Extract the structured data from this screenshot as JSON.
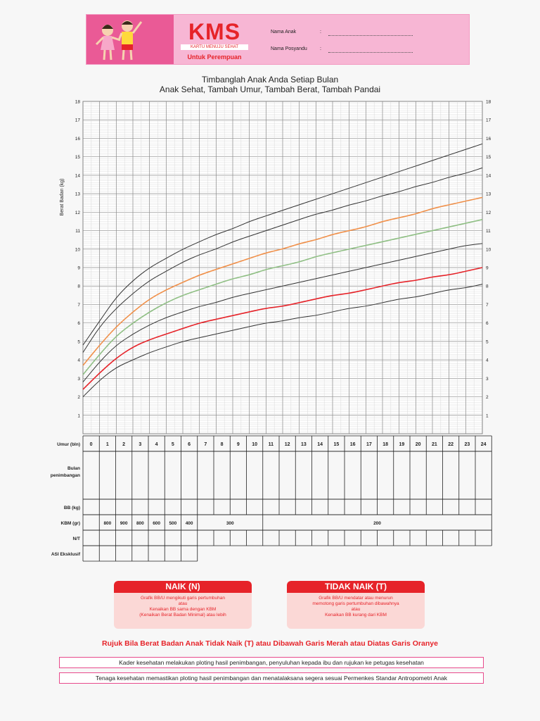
{
  "header": {
    "logo": "KMS",
    "logo_sub": "KARTU MENUJU SEHAT",
    "for_label": "Untuk Perempuan",
    "field_child": "Nama Anak",
    "field_posyandu": "Nama Posyandu",
    "colon": ":"
  },
  "titles": {
    "line1": "Timbanglah Anak Anda Setiap Bulan",
    "line2": "Anak Sehat, Tambah Umur, Tambah Berat, Tambah Pandai"
  },
  "chart_data": {
    "type": "line",
    "ylabel": "Berat Badan (kg)",
    "xlabel": "Umur (bln)",
    "xlim": [
      0,
      24
    ],
    "ylim": [
      0,
      18
    ],
    "y_ticks": [
      "1",
      "2",
      "3",
      "4",
      "5",
      "6",
      "7",
      "8",
      "9",
      "10",
      "11",
      "12",
      "13",
      "14",
      "15",
      "16",
      "17",
      "18"
    ],
    "x": [
      0,
      1,
      2,
      3,
      4,
      5,
      6,
      7,
      8,
      9,
      10,
      11,
      12,
      13,
      14,
      15,
      16,
      17,
      18,
      19,
      20,
      21,
      22,
      23,
      24
    ],
    "series": [
      {
        "color": "#333333",
        "values": [
          4.8,
          6.1,
          7.4,
          8.3,
          9.0,
          9.5,
          10.0,
          10.4,
          10.8,
          11.1,
          11.5,
          11.8,
          12.1,
          12.4,
          12.7,
          13.0,
          13.3,
          13.6,
          13.9,
          14.2,
          14.5,
          14.8,
          15.1,
          15.4,
          15.7
        ]
      },
      {
        "color": "#333333",
        "values": [
          4.4,
          5.8,
          6.8,
          7.6,
          8.3,
          8.8,
          9.3,
          9.7,
          10.0,
          10.4,
          10.7,
          11.0,
          11.3,
          11.6,
          11.9,
          12.1,
          12.4,
          12.6,
          12.9,
          13.1,
          13.4,
          13.6,
          13.9,
          14.1,
          14.4
        ]
      },
      {
        "color": "#f0904a",
        "values": [
          3.7,
          4.8,
          5.8,
          6.6,
          7.3,
          7.8,
          8.2,
          8.6,
          8.9,
          9.2,
          9.5,
          9.8,
          10.0,
          10.3,
          10.5,
          10.8,
          11.0,
          11.2,
          11.5,
          11.7,
          11.9,
          12.2,
          12.4,
          12.6,
          12.8
        ]
      },
      {
        "color": "#8fbf84",
        "values": [
          3.2,
          4.3,
          5.3,
          6.0,
          6.6,
          7.1,
          7.5,
          7.8,
          8.1,
          8.4,
          8.6,
          8.9,
          9.1,
          9.3,
          9.6,
          9.8,
          10.0,
          10.2,
          10.4,
          10.6,
          10.8,
          11.0,
          11.2,
          11.4,
          11.6
        ]
      },
      {
        "color": "#333333",
        "values": [
          2.8,
          3.9,
          4.8,
          5.4,
          5.9,
          6.3,
          6.6,
          6.9,
          7.1,
          7.4,
          7.6,
          7.8,
          8.0,
          8.2,
          8.4,
          8.6,
          8.8,
          9.0,
          9.2,
          9.4,
          9.6,
          9.8,
          10.0,
          10.2,
          10.3
        ]
      },
      {
        "color": "#e62329",
        "values": [
          2.4,
          3.3,
          4.1,
          4.7,
          5.1,
          5.4,
          5.7,
          6.0,
          6.2,
          6.4,
          6.6,
          6.8,
          6.9,
          7.1,
          7.3,
          7.5,
          7.6,
          7.8,
          8.0,
          8.2,
          8.3,
          8.5,
          8.6,
          8.8,
          9.0
        ]
      },
      {
        "color": "#333333",
        "values": [
          2.0,
          2.9,
          3.6,
          4.0,
          4.4,
          4.7,
          5.0,
          5.2,
          5.4,
          5.6,
          5.8,
          6.0,
          6.1,
          6.3,
          6.4,
          6.6,
          6.8,
          6.9,
          7.1,
          7.3,
          7.4,
          7.6,
          7.8,
          7.9,
          8.1
        ]
      }
    ]
  },
  "table": {
    "row_labels": [
      "Umur (bln)",
      "Bulan\npenimbangan",
      "BB (kg)",
      "KBM (gr)",
      "N/T",
      "ASI Eksklusif"
    ],
    "months": [
      "0",
      "1",
      "2",
      "3",
      "4",
      "5",
      "6",
      "7",
      "8",
      "9",
      "10",
      "11",
      "12",
      "13",
      "14",
      "15",
      "16",
      "17",
      "18",
      "19",
      "20",
      "21",
      "22",
      "23",
      "24"
    ],
    "kbm_values": [
      "800",
      "900",
      "800",
      "600",
      "500",
      "400"
    ],
    "kbm_300": "300",
    "kbm_200": "200"
  },
  "legend_boxes": {
    "naik": {
      "title": "NAIK (N)",
      "lines": [
        "Grafik BB/U mengikuti garis pertumbuhan",
        "atau",
        "Kenaikan BB sama dengan KBM",
        "(Kenaikan Berat Badan Minimal) atau lebih"
      ]
    },
    "tidak_naik": {
      "title": "TIDAK NAIK (T)",
      "lines": [
        "Grafik BB/U mendatar atau menurun",
        "memotong garis pertumbuhan dibawahnya",
        "atau",
        "Kenaikan BB kurang dari KBM"
      ]
    }
  },
  "referral": "Rujuk Bila Berat Badan Anak Tidak Naik (T) atau Dibawah Garis Merah atau Diatas Garis Oranye",
  "notes": [
    "Kader kesehatan melakukan ploting hasil penimbangan, penyuluhan kepada ibu dan rujukan ke petugas kesehatan",
    "Tenaga kesehatan memastikan ploting hasil penimbangan dan menatalaksana segera sesuai Permenkes Standar Antropometri Anak"
  ]
}
